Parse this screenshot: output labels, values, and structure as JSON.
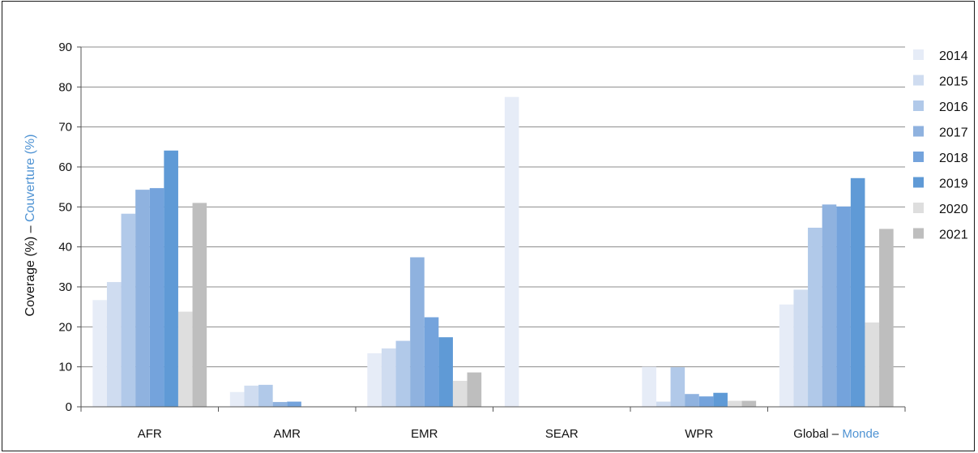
{
  "chart_data": {
    "type": "bar",
    "ylabel_en": "Coverage (%)",
    "ylabel_sep": " – ",
    "ylabel_fr": "Couverture (%)",
    "ylim": [
      0,
      90
    ],
    "yticks": [
      "0",
      "10",
      "20",
      "30",
      "40",
      "50",
      "60",
      "70",
      "80",
      "90"
    ],
    "grid": true,
    "legend_position": "right",
    "categories": [
      "AFR",
      "AMR",
      "EMR",
      "SEAR",
      "WPR",
      "Global – Monde"
    ],
    "last_category_parts": [
      "Global – ",
      "Monde"
    ],
    "series": [
      {
        "name": "2014",
        "color": "#e6ecf7",
        "values": [
          26.7,
          3.7,
          13.4,
          77.5,
          10.0,
          25.6
        ]
      },
      {
        "name": "2015",
        "color": "#cfdcf0",
        "values": [
          31.2,
          5.3,
          14.6,
          0,
          1.3,
          29.3
        ]
      },
      {
        "name": "2016",
        "color": "#b1c9e9",
        "values": [
          48.3,
          5.5,
          16.5,
          0,
          9.9,
          44.8
        ]
      },
      {
        "name": "2017",
        "color": "#8fb2df",
        "values": [
          54.3,
          1.2,
          37.4,
          0,
          3.2,
          50.6
        ]
      },
      {
        "name": "2018",
        "color": "#74a3dc",
        "values": [
          54.7,
          1.3,
          22.4,
          0,
          2.6,
          50.1
        ]
      },
      {
        "name": "2019",
        "color": "#5f9ad6",
        "values": [
          64.1,
          0,
          17.4,
          0,
          3.5,
          57.2
        ]
      },
      {
        "name": "2020",
        "color": "#dedede",
        "values": [
          23.8,
          0,
          6.5,
          0,
          1.5,
          21.1
        ]
      },
      {
        "name": "2021",
        "color": "#bebebe",
        "values": [
          51.0,
          0,
          8.6,
          0,
          1.5,
          44.5
        ]
      }
    ],
    "label_accent_color": "#4f93d3"
  }
}
